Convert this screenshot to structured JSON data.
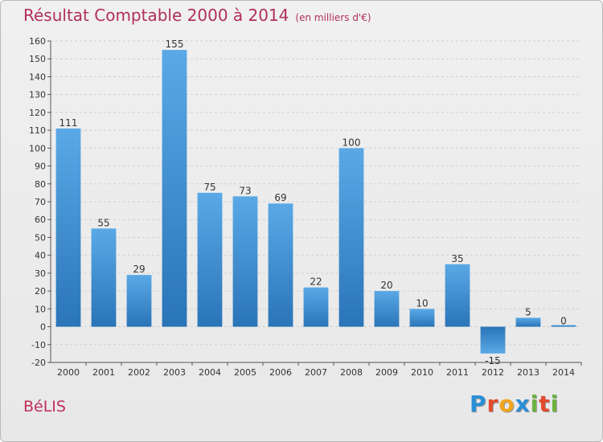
{
  "header": {
    "title": "Résultat Comptable 2000 à 2014",
    "unit": "(en milliers d'€)"
  },
  "footer": {
    "place": "BéLIS",
    "logo_letters": [
      {
        "ch": "P",
        "color": "#2b8ed6"
      },
      {
        "ch": "r",
        "color": "#e4492c"
      },
      {
        "ch": "o",
        "color": "#f0a51c"
      },
      {
        "ch": "x",
        "color": "#2b8ed6"
      },
      {
        "ch": "i",
        "color": "#6cb33f"
      },
      {
        "ch": "t",
        "color": "#e4492c"
      },
      {
        "ch": "i",
        "color": "#6cb33f"
      }
    ]
  },
  "colors": {
    "bar_light": "#5aa9e6",
    "bar_dark": "#2a74b8",
    "title": "#b0305a"
  },
  "chart_data": {
    "type": "bar",
    "title": "Résultat Comptable 2000 à 2014",
    "ylabel": "",
    "xlabel": "",
    "categories": [
      "2000",
      "2001",
      "2002",
      "2003",
      "2004",
      "2005",
      "2006",
      "2007",
      "2008",
      "2009",
      "2010",
      "2011",
      "2012",
      "2013",
      "2014"
    ],
    "values": [
      111,
      55,
      29,
      155,
      75,
      73,
      69,
      22,
      100,
      20,
      10,
      35,
      -15,
      5,
      0
    ],
    "ylim": [
      -20,
      160
    ],
    "yticks": [
      -20,
      -10,
      0,
      10,
      20,
      30,
      40,
      50,
      60,
      70,
      80,
      90,
      100,
      110,
      120,
      130,
      140,
      150,
      160
    ],
    "grid": true
  }
}
